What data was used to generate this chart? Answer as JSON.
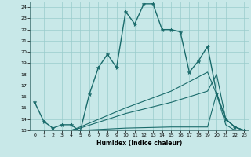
{
  "title": "",
  "xlabel": "Humidex (Indice chaleur)",
  "xlim": [
    -0.5,
    23.5
  ],
  "ylim": [
    13,
    24.5
  ],
  "xticks": [
    0,
    1,
    2,
    3,
    4,
    5,
    6,
    7,
    8,
    9,
    10,
    11,
    12,
    13,
    14,
    15,
    16,
    17,
    18,
    19,
    20,
    21,
    22,
    23
  ],
  "yticks": [
    13,
    14,
    15,
    16,
    17,
    18,
    19,
    20,
    21,
    22,
    23,
    24
  ],
  "background_color": "#c8e8e8",
  "line_color": "#1a6b6b",
  "grid_color": "#99cccc",
  "lines": [
    {
      "x": [
        0,
        1,
        2,
        3,
        4,
        5,
        6,
        7,
        8,
        9,
        10,
        11,
        12,
        13,
        14,
        15,
        16,
        17,
        18,
        19,
        20,
        21,
        22,
        23
      ],
      "y": [
        15.5,
        13.8,
        13.2,
        13.5,
        13.5,
        12.9,
        16.2,
        18.6,
        19.8,
        18.6,
        23.6,
        22.5,
        24.3,
        24.3,
        22.0,
        22.0,
        21.8,
        18.2,
        19.2,
        20.5,
        16.3,
        14.0,
        13.3,
        13.0
      ],
      "marker": true,
      "linewidth": 1.0
    },
    {
      "x": [
        0,
        1,
        2,
        3,
        4,
        5,
        10,
        15,
        19,
        20,
        21,
        22,
        23
      ],
      "y": [
        13.0,
        13.0,
        13.0,
        13.0,
        13.0,
        13.0,
        13.2,
        13.3,
        13.3,
        16.3,
        14.0,
        13.3,
        13.0
      ],
      "marker": false,
      "linewidth": 0.8
    },
    {
      "x": [
        0,
        1,
        2,
        3,
        4,
        5,
        10,
        15,
        19,
        20,
        21,
        22,
        23
      ],
      "y": [
        13.0,
        13.0,
        13.0,
        13.0,
        13.0,
        13.2,
        14.5,
        15.5,
        16.5,
        18.0,
        14.0,
        13.3,
        13.0
      ],
      "marker": false,
      "linewidth": 0.8
    },
    {
      "x": [
        0,
        1,
        2,
        3,
        4,
        5,
        10,
        15,
        19,
        20,
        21,
        22,
        23
      ],
      "y": [
        13.0,
        13.0,
        13.0,
        13.0,
        13.0,
        13.3,
        15.0,
        16.5,
        18.2,
        16.2,
        13.5,
        13.0,
        13.0
      ],
      "marker": false,
      "linewidth": 0.8
    }
  ]
}
